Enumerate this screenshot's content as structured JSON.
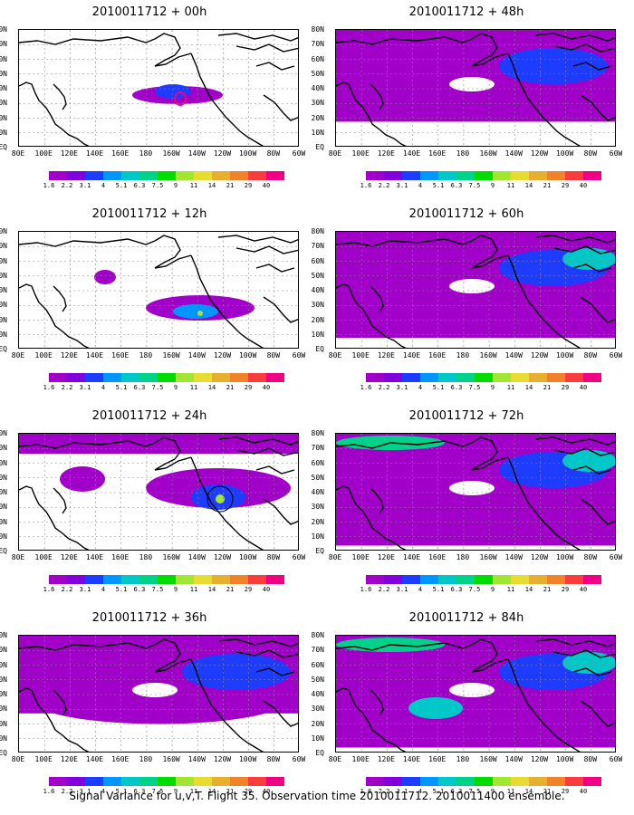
{
  "panels": [
    {
      "title": "2010011712 + 00h",
      "level": 0
    },
    {
      "title": "2010011712 + 48h",
      "level": 4
    },
    {
      "title": "2010011712 + 12h",
      "level": 1
    },
    {
      "title": "2010011712 + 60h",
      "level": 5
    },
    {
      "title": "2010011712 + 24h",
      "level": 2
    },
    {
      "title": "2010011712 + 72h",
      "level": 6
    },
    {
      "title": "2010011712 + 36h",
      "level": 3
    },
    {
      "title": "2010011712 + 84h",
      "level": 7
    }
  ],
  "lat_labels": [
    "80N",
    "70N",
    "60N",
    "50N",
    "40N",
    "30N",
    "20N",
    "10N",
    "EQ"
  ],
  "lon_labels": [
    "80E",
    "100E",
    "120E",
    "140E",
    "160E",
    "180",
    "160W",
    "140W",
    "120W",
    "100W",
    "80W",
    "60W"
  ],
  "colorbar": {
    "labels": [
      "1.6",
      "2.2",
      "3.1",
      "4",
      "5.1",
      "6.3",
      "7.5",
      "9",
      "11",
      "14",
      "21",
      "29",
      "40"
    ],
    "colors": [
      "#a000c8",
      "#8200dc",
      "#1e3cff",
      "#0096ff",
      "#00c8c8",
      "#00d28c",
      "#00dc00",
      "#a0e632",
      "#e6dc32",
      "#e6af2d",
      "#f08228",
      "#fa3c3c",
      "#f00082"
    ]
  },
  "footer": "Signal Variance for u,v,T. Flight 35. Observation time 2010011712. 2010011400 ensemble."
}
